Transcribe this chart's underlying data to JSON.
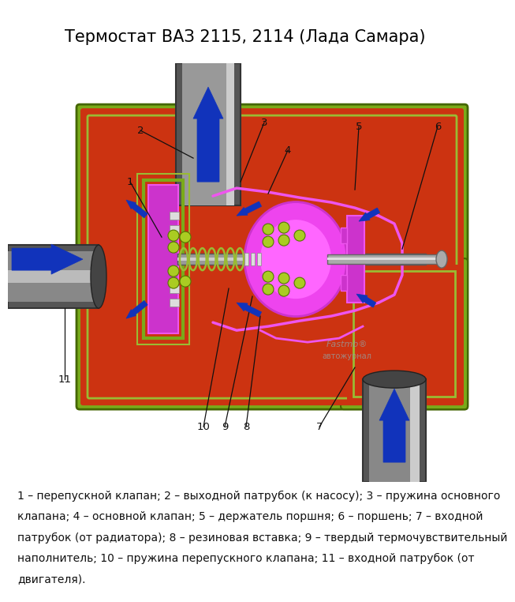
{
  "title": "Термостат ВАЗ 2115, 2114 (Лада Самара)",
  "title_fontsize": 15,
  "title_color": "#000000",
  "background_color": "#ffffff",
  "caption_line1": "1 – перепускной клапан; 2 – выходной патрубок (к насосу); 3 – пружина основного",
  "caption_line2": "клапана; 4 – основной клапан; 5 – держатель поршня; 6 – поршень; 7 – входной",
  "caption_line3": "патрубок (от радиатора); 8 – резиновая вставка; 9 – твердый термочувствительный",
  "caption_line4": "наполнитель; 10 – пружина перепускного клапана; 11 – входной патрубок (от",
  "caption_line5": "двигателя).",
  "caption_fontsize": 10,
  "red": "#cc3311",
  "green": "#7aaa1a",
  "green2": "#99bb33",
  "purple": "#cc33cc",
  "purple2": "#ee55ee",
  "gray_pipe": "#888888",
  "gray_pipe2": "#aaaaaa",
  "dark": "#222222",
  "blue": "#1133bb",
  "white": "#ffffff"
}
